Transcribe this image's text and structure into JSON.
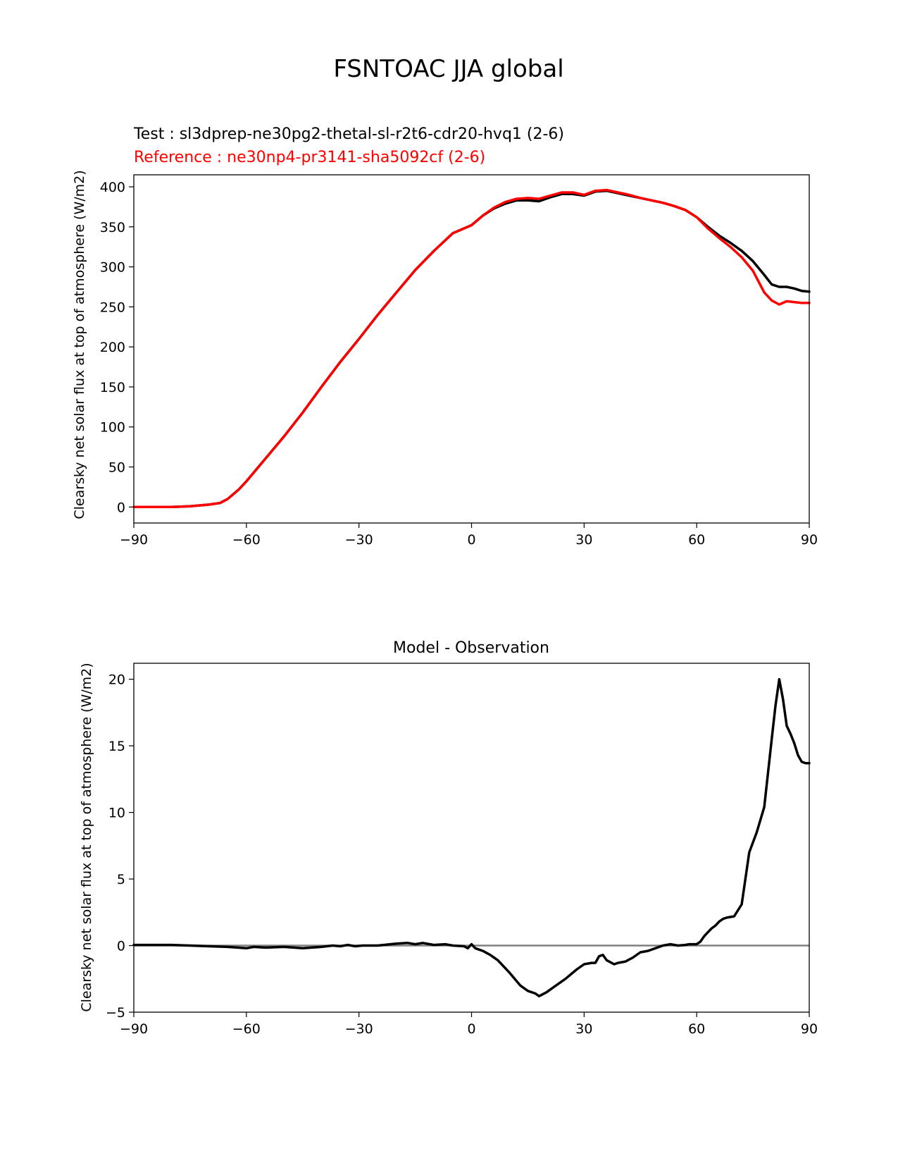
{
  "figure": {
    "title": "FSNTOAC JJA global"
  },
  "chart_data": [
    {
      "type": "line",
      "title_test": "Test : sl3dprep-ne30pg2-thetal-sl-r2t6-cdr20-hvq1 (2-6)",
      "title_reference": "Reference : ne30np4-pr3141-sha5092cf (2-6)",
      "xlabel": "",
      "ylabel": "Clearsky net solar flux at top of atmosphere (W/m2)",
      "xlim": [
        -90,
        90
      ],
      "ylim": [
        -20,
        415
      ],
      "xticks": [
        -90,
        -60,
        -30,
        0,
        30,
        60,
        90
      ],
      "xtick_labels": [
        "−90",
        "−60",
        "−30",
        "0",
        "30",
        "60",
        "90"
      ],
      "yticks": [
        0,
        50,
        100,
        150,
        200,
        250,
        300,
        350,
        400
      ],
      "ytick_labels": [
        "0",
        "50",
        "100",
        "150",
        "200",
        "250",
        "300",
        "350",
        "400"
      ],
      "grid": false,
      "series": [
        {
          "color": "#000000",
          "x": [
            -90,
            -85,
            -80,
            -75,
            -70,
            -67,
            -65,
            -62,
            -60,
            -55,
            -50,
            -45,
            -40,
            -35,
            -30,
            -25,
            -20,
            -15,
            -10,
            -5,
            0,
            3,
            6,
            9,
            12,
            15,
            18,
            21,
            24,
            27,
            30,
            33,
            36,
            39,
            42,
            45,
            48,
            51,
            54,
            57,
            60,
            63,
            66,
            69,
            72,
            75,
            78,
            80,
            82,
            84,
            86,
            88,
            90
          ],
          "y": [
            0,
            0,
            0,
            1,
            3,
            5,
            10,
            22,
            32,
            60,
            88,
            118,
            150,
            181,
            210,
            240,
            268,
            296,
            320,
            342,
            352,
            364,
            373,
            379,
            383,
            383,
            382,
            387,
            391,
            391,
            389,
            394,
            395,
            392,
            389,
            386,
            383,
            380,
            376,
            371,
            362,
            350,
            339,
            330,
            320,
            307,
            290,
            278,
            275,
            275,
            273,
            270,
            269
          ]
        },
        {
          "color": "#ff0000",
          "x": [
            -90,
            -85,
            -80,
            -75,
            -70,
            -67,
            -65,
            -62,
            -60,
            -55,
            -50,
            -45,
            -40,
            -35,
            -30,
            -25,
            -20,
            -15,
            -10,
            -5,
            0,
            3,
            6,
            9,
            12,
            15,
            18,
            21,
            24,
            27,
            30,
            33,
            36,
            39,
            42,
            45,
            48,
            51,
            54,
            57,
            60,
            63,
            66,
            69,
            72,
            75,
            78,
            80,
            82,
            84,
            86,
            88,
            90
          ],
          "y": [
            0,
            0,
            0,
            1,
            3,
            5,
            10,
            22,
            32,
            60,
            88,
            118,
            150,
            181,
            210,
            240,
            268,
            296,
            320,
            342,
            352,
            364,
            374,
            381,
            385,
            386,
            385,
            389,
            393,
            393,
            390,
            395,
            396,
            393,
            390,
            386,
            383,
            380,
            376,
            371,
            362,
            348,
            336,
            325,
            312,
            295,
            268,
            258,
            253,
            257,
            256,
            255,
            255
          ]
        }
      ]
    },
    {
      "type": "line",
      "title": "Model - Observation",
      "xlabel": "",
      "ylabel": "Clearsky net solar flux at top of atmosphere (W/m2)",
      "xlim": [
        -90,
        90
      ],
      "ylim": [
        -5,
        21.2
      ],
      "xticks": [
        -90,
        -60,
        -30,
        0,
        30,
        60,
        90
      ],
      "xtick_labels": [
        "−90",
        "−60",
        "−30",
        "0",
        "30",
        "60",
        "90"
      ],
      "yticks": [
        -5,
        0,
        5,
        10,
        15,
        20
      ],
      "ytick_labels": [
        "−5",
        "0",
        "5",
        "10",
        "15",
        "20"
      ],
      "grid": false,
      "zero_line": true,
      "series": [
        {
          "color": "#000000",
          "x": [
            -90,
            -85,
            -80,
            -75,
            -70,
            -65,
            -60,
            -58,
            -55,
            -50,
            -45,
            -40,
            -37,
            -35,
            -33,
            -31,
            -29,
            -25,
            -20,
            -17,
            -15,
            -13,
            -10,
            -7,
            -5,
            -2,
            -1,
            0,
            1,
            3,
            5,
            7,
            10,
            13,
            15,
            17,
            18,
            20,
            22,
            25,
            28,
            30,
            32,
            33,
            34,
            35,
            36,
            38,
            39,
            41,
            43,
            45,
            47,
            49,
            51,
            53,
            55,
            57,
            58,
            59,
            60,
            61,
            62,
            63,
            64,
            65,
            66,
            67,
            68,
            70,
            72,
            74,
            76,
            78,
            80,
            81,
            82,
            83,
            84,
            85,
            86,
            87,
            88,
            89,
            90
          ],
          "y": [
            0.05,
            0.05,
            0.05,
            0,
            -0.05,
            -0.1,
            -0.2,
            -0.1,
            -0.15,
            -0.1,
            -0.2,
            -0.1,
            0,
            -0.05,
            0.05,
            -0.05,
            0,
            0,
            0.15,
            0.2,
            0.1,
            0.2,
            0.05,
            0.1,
            0,
            -0.05,
            -0.2,
            0.1,
            -0.2,
            -0.4,
            -0.7,
            -1.1,
            -2.0,
            -3.0,
            -3.4,
            -3.6,
            -3.8,
            -3.5,
            -3.1,
            -2.5,
            -1.8,
            -1.4,
            -1.3,
            -1.3,
            -0.8,
            -0.7,
            -1.1,
            -1.4,
            -1.3,
            -1.2,
            -0.9,
            -0.5,
            -0.4,
            -0.2,
            0,
            0.1,
            0,
            0.05,
            0.1,
            0.1,
            0.1,
            0.3,
            0.7,
            1.0,
            1.3,
            1.5,
            1.8,
            2.0,
            2.1,
            2.2,
            3.1,
            7.0,
            8.5,
            10.4,
            15.5,
            18.0,
            20.0,
            18.5,
            16.5,
            15.9,
            15.2,
            14.3,
            13.8,
            13.7,
            13.7
          ]
        }
      ]
    }
  ]
}
